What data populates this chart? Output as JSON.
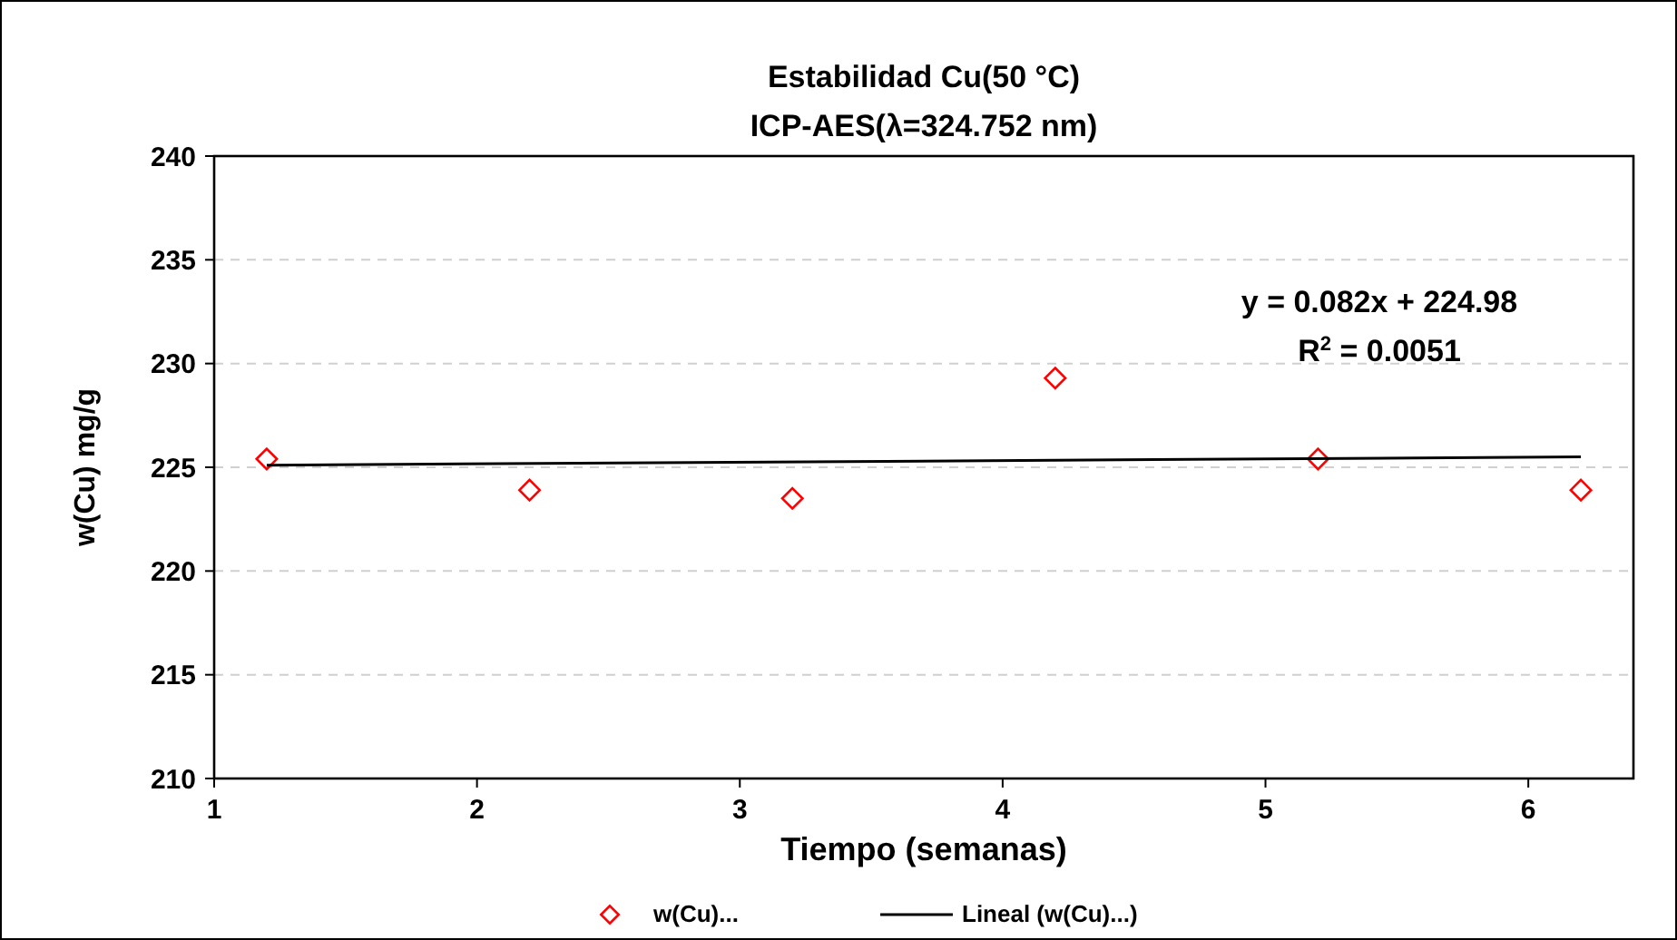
{
  "chart_data": {
    "type": "scatter",
    "title": "Estabilidad Cu(50 °C)",
    "subtitle": "ICP-AES(λ=324.752 nm)",
    "xlabel": "Tiempo (semanas)",
    "ylabel": "w(Cu) mg/g",
    "annotations": [
      "y = 0.082x + 224.98",
      "R$^{2}$ = 0.0051"
    ],
    "series": [
      {
        "name": "w(Cu)...",
        "color": "#ff0000",
        "marker": "diamond",
        "x": [
          1.2,
          2.2,
          3.2,
          4.2,
          5.2,
          6.2
        ],
        "values": [
          225.4,
          223.9,
          223.5,
          229.3,
          225.4,
          223.9
        ]
      },
      {
        "name": "Lineal (w(Cu)...)",
        "type": "line",
        "color": "#000000",
        "line_style": "solid",
        "x": [
          1.2,
          6.2
        ],
        "values": [
          225.1,
          225.5
        ]
      }
    ],
    "xlim": [
      1,
      6.4
    ],
    "xticks": [
      1,
      2,
      3,
      4,
      5,
      6
    ],
    "ylim": [
      210,
      240
    ],
    "yticks": [
      210,
      215,
      220,
      225,
      230,
      235,
      240
    ],
    "grid": "y",
    "legend": "bottom"
  }
}
